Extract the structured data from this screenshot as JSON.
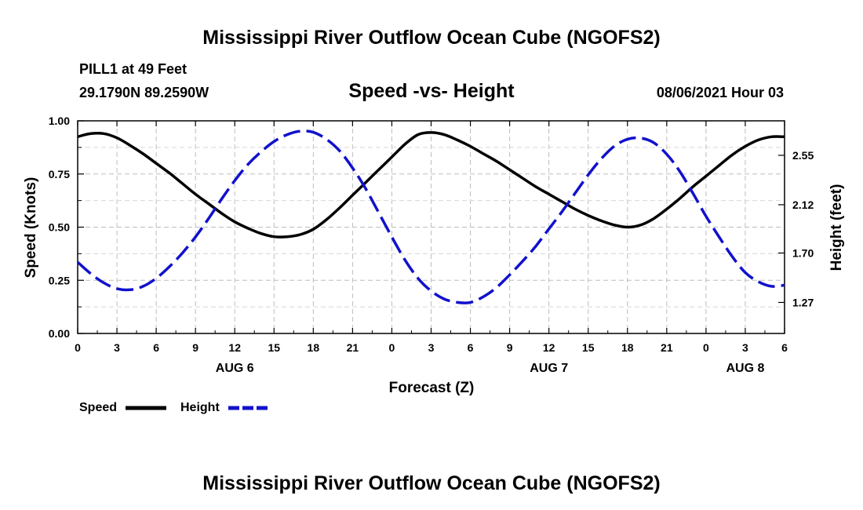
{
  "chart_data": {
    "type": "line",
    "title": "Mississippi River Outflow Ocean Cube (NGOFS2)",
    "footer_title": "Mississippi River Outflow Ocean Cube (NGOFS2)",
    "subtitle": "Speed -vs- Height",
    "station": "PILL1 at 49 Feet",
    "location": "29.1790N  89.2590W",
    "datetime": "08/06/2021 Hour 03",
    "xlabel": "Forecast (Z)",
    "ylabel_left": "Speed (Knots)",
    "ylabel_right": "Height (feet)",
    "x_range_hours": [
      0,
      54
    ],
    "x_ticks": [
      {
        "h": 0,
        "label": "0"
      },
      {
        "h": 3,
        "label": "3"
      },
      {
        "h": 6,
        "label": "6"
      },
      {
        "h": 9,
        "label": "9"
      },
      {
        "h": 12,
        "label": "12"
      },
      {
        "h": 15,
        "label": "15"
      },
      {
        "h": 18,
        "label": "18"
      },
      {
        "h": 21,
        "label": "21"
      },
      {
        "h": 24,
        "label": "0"
      },
      {
        "h": 27,
        "label": "3"
      },
      {
        "h": 30,
        "label": "6"
      },
      {
        "h": 33,
        "label": "9"
      },
      {
        "h": 36,
        "label": "12"
      },
      {
        "h": 39,
        "label": "15"
      },
      {
        "h": 42,
        "label": "18"
      },
      {
        "h": 45,
        "label": "21"
      },
      {
        "h": 48,
        "label": "0"
      },
      {
        "h": 51,
        "label": "3"
      },
      {
        "h": 54,
        "label": "6"
      }
    ],
    "day_labels": [
      {
        "h": 12,
        "label": "AUG 6"
      },
      {
        "h": 36,
        "label": "AUG 7"
      },
      {
        "h": 51,
        "label": "AUG 8"
      }
    ],
    "y_left": {
      "range": [
        0,
        1
      ],
      "ticks": [
        "0.00",
        "0.25",
        "0.50",
        "0.75",
        "1.00"
      ]
    },
    "y_right": {
      "range": [
        1.0,
        2.85
      ],
      "ticks": [
        "1.27",
        "1.70",
        "2.12",
        "2.55"
      ]
    },
    "grid": true,
    "legend": {
      "position": "bottom-left",
      "speed_label": "Speed",
      "height_label": "Height"
    },
    "series": [
      {
        "name": "Speed",
        "axis": "left",
        "color": "#000000",
        "style": "solid",
        "x": [
          0,
          1,
          2,
          3,
          4,
          5,
          6,
          7,
          8,
          9,
          10,
          11,
          12,
          13,
          14,
          15,
          16,
          17,
          18,
          19,
          20,
          21,
          22,
          23,
          24,
          25,
          26,
          27,
          28,
          29,
          30,
          31,
          32,
          33,
          34,
          35,
          36,
          37,
          38,
          39,
          40,
          41,
          42,
          43,
          44,
          45,
          46,
          47,
          48,
          49,
          50,
          51,
          52,
          53,
          54
        ],
        "values": [
          0.925,
          0.94,
          0.94,
          0.92,
          0.885,
          0.845,
          0.8,
          0.755,
          0.705,
          0.655,
          0.61,
          0.565,
          0.525,
          0.495,
          0.47,
          0.455,
          0.455,
          0.465,
          0.49,
          0.535,
          0.59,
          0.65,
          0.71,
          0.77,
          0.83,
          0.89,
          0.935,
          0.945,
          0.935,
          0.91,
          0.88,
          0.845,
          0.81,
          0.77,
          0.73,
          0.69,
          0.655,
          0.62,
          0.585,
          0.555,
          0.53,
          0.51,
          0.5,
          0.51,
          0.54,
          0.585,
          0.635,
          0.69,
          0.74,
          0.79,
          0.84,
          0.88,
          0.91,
          0.925,
          0.925
        ]
      },
      {
        "name": "Height",
        "axis": "right",
        "color": "#1111cc",
        "style": "dashed",
        "x": [
          0,
          1,
          2,
          3,
          4,
          5,
          6,
          7,
          8,
          9,
          10,
          11,
          12,
          13,
          14,
          15,
          16,
          17,
          18,
          19,
          20,
          21,
          22,
          23,
          24,
          25,
          26,
          27,
          28,
          29,
          30,
          31,
          32,
          33,
          34,
          35,
          36,
          37,
          38,
          39,
          40,
          41,
          42,
          43,
          44,
          45,
          46,
          47,
          48,
          49,
          50,
          51,
          52,
          53,
          54
        ],
        "values": [
          1.62,
          1.52,
          1.44,
          1.39,
          1.38,
          1.41,
          1.48,
          1.58,
          1.7,
          1.84,
          2.0,
          2.17,
          2.33,
          2.47,
          2.58,
          2.67,
          2.73,
          2.76,
          2.75,
          2.69,
          2.59,
          2.44,
          2.26,
          2.05,
          1.84,
          1.64,
          1.48,
          1.37,
          1.3,
          1.27,
          1.27,
          1.32,
          1.4,
          1.51,
          1.63,
          1.76,
          1.91,
          2.06,
          2.22,
          2.38,
          2.52,
          2.63,
          2.69,
          2.7,
          2.66,
          2.56,
          2.41,
          2.22,
          2.02,
          1.84,
          1.67,
          1.53,
          1.45,
          1.41,
          1.42
        ]
      }
    ]
  }
}
